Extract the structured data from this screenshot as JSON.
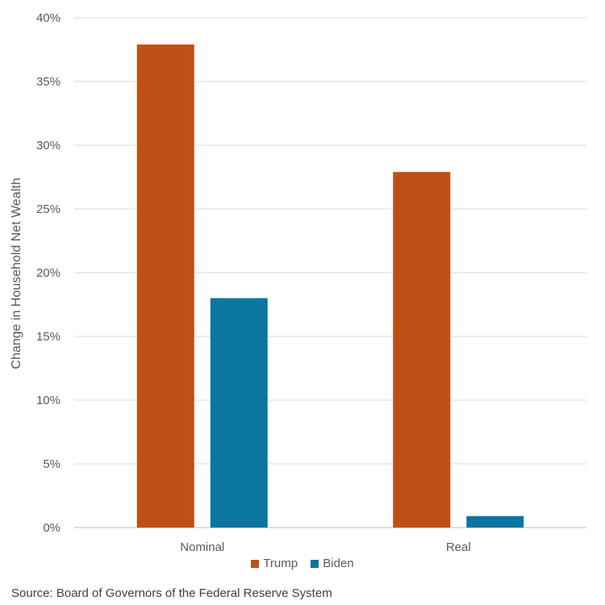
{
  "chart_data": {
    "type": "bar",
    "categories": [
      "Nominal",
      "Real"
    ],
    "series": [
      {
        "name": "Trump",
        "values": [
          37.9,
          27.9
        ],
        "color": "#c04f15"
      },
      {
        "name": "Biden",
        "values": [
          18.0,
          0.9
        ],
        "color": "#0b76a0"
      }
    ],
    "ylabel": "Change in Household Net Wealth",
    "ylim": [
      0,
      40
    ],
    "yticks": [
      "0%",
      "5%",
      "10%",
      "15%",
      "20%",
      "25%",
      "30%",
      "35%",
      "40%"
    ],
    "grid": true,
    "legend_position": "bottom"
  },
  "source": "Source: Board of Governors of the Federal Reserve System"
}
